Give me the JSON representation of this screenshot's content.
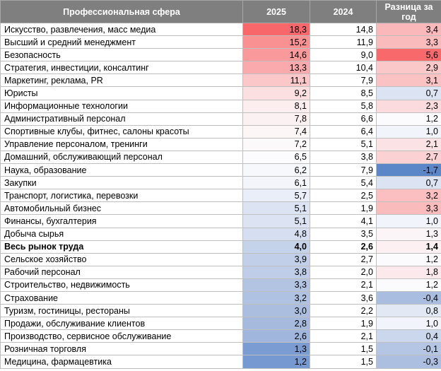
{
  "table": {
    "headers": [
      "Профессиональная сфера",
      "2025",
      "2024",
      "Разница за год"
    ],
    "rows": [
      {
        "name": "Искусство, развлечения, масс медиа",
        "v2025": "18,3",
        "v2024": "14,8",
        "diff": "3,4",
        "bg2025": "#f8686b",
        "bgDiff": "#fab8bb",
        "bold": false
      },
      {
        "name": "Высший и средний менеджмент",
        "v2025": "15,2",
        "v2024": "11,9",
        "diff": "3,3",
        "bg2025": "#f99193",
        "bgDiff": "#fabbbd",
        "bold": false
      },
      {
        "name": "Безопасность",
        "v2025": "14,6",
        "v2024": "9,0",
        "diff": "5,6",
        "bg2025": "#f9999b",
        "bgDiff": "#f8696b",
        "bold": false
      },
      {
        "name": "Стратегия, инвестиции, консалтинг",
        "v2025": "13,3",
        "v2024": "10,4",
        "diff": "2,9",
        "bg2025": "#faaaac",
        "bgDiff": "#fbc8ca",
        "bold": false
      },
      {
        "name": "Маркетинг, реклама, PR",
        "v2025": "11,1",
        "v2024": "7,9",
        "diff": "3,1",
        "bg2025": "#fbc7c9",
        "bgDiff": "#fbc2c4",
        "bold": false
      },
      {
        "name": "Юристы",
        "v2025": "9,2",
        "v2024": "8,5",
        "diff": "0,7",
        "bg2025": "#fce0e1",
        "bgDiff": "#dce4f3",
        "bold": false
      },
      {
        "name": "Информационные технологии",
        "v2025": "8,1",
        "v2024": "5,8",
        "diff": "2,3",
        "bg2025": "#fcedee",
        "bgDiff": "#fbdbdd",
        "bold": false
      },
      {
        "name": "Административный персонал",
        "v2025": "7,8",
        "v2024": "6,6",
        "diff": "1,2",
        "bg2025": "#fcf1f2",
        "bgDiff": "#fbfbfe",
        "bold": false
      },
      {
        "name": "Спортивные клубы, фитнес, салоны красоты",
        "v2025": "7,4",
        "v2024": "6,4",
        "diff": "1,0",
        "bg2025": "#fcf6f7",
        "bgDiff": "#f1f4fa",
        "bold": false
      },
      {
        "name": "Управление персоналом, тренинги",
        "v2025": "7,2",
        "v2024": "5,1",
        "diff": "2,1",
        "bg2025": "#fcf9fa",
        "bgDiff": "#fbe3e5",
        "bold": false
      },
      {
        "name": "Домашний, обслуживающий персонал",
        "v2025": "6,5",
        "v2024": "3,8",
        "diff": "2,7",
        "bg2025": "#fcfcff",
        "bgDiff": "#fbd1d3",
        "bold": false
      },
      {
        "name": "Наука, образование",
        "v2025": "6,2",
        "v2024": "7,9",
        "diff": "-1,7",
        "bg2025": "#f6f8fc",
        "bgDiff": "#5b87c9",
        "bold": false
      },
      {
        "name": "Закупки",
        "v2025": "6,1",
        "v2024": "5,4",
        "diff": "0,7",
        "bg2025": "#f3f5fb",
        "bgDiff": "#dce4f3",
        "bold": false
      },
      {
        "name": "Транспорт, логистика, перевозки",
        "v2025": "5,7",
        "v2024": "2,5",
        "diff": "3,2",
        "bg2025": "#e9eef8",
        "bgDiff": "#fbbfc1",
        "bold": false
      },
      {
        "name": "Автомобильный бизнес",
        "v2025": "5,1",
        "v2024": "1,9",
        "diff": "3,3",
        "bg2025": "#dce4f3",
        "bgDiff": "#fabbbd",
        "bold": false
      },
      {
        "name": "Финансы, бухгалтерия",
        "v2025": "5,1",
        "v2024": "4,1",
        "diff": "1,0",
        "bg2025": "#dce4f3",
        "bgDiff": "#f1f4fa",
        "bold": false
      },
      {
        "name": "Добыча сырья",
        "v2025": "4,8",
        "v2024": "3,5",
        "diff": "1,3",
        "bg2025": "#d5dff1",
        "bgDiff": "#fcf5f7",
        "bold": false
      },
      {
        "name": "Весь рынок труда",
        "v2025": "4,0",
        "v2024": "2,6",
        "diff": "1,4",
        "bg2025": "#c4d2ea",
        "bgDiff": "#fcf0f2",
        "bold": true
      },
      {
        "name": "Сельское хозяйство",
        "v2025": "3,9",
        "v2024": "2,7",
        "diff": "1,2",
        "bg2025": "#c1cfe9",
        "bgDiff": "#fbfbfe",
        "bold": false
      },
      {
        "name": "Рабочий персонал",
        "v2025": "3,8",
        "v2024": "2,0",
        "diff": "1,8",
        "bg2025": "#bfcde8",
        "bgDiff": "#fbe9eb",
        "bold": false
      },
      {
        "name": "Строительство, недвижимость",
        "v2025": "3,3",
        "v2024": "2,1",
        "diff": "1,2",
        "bg2025": "#b3c4e3",
        "bgDiff": "#fbfbfe",
        "bold": false
      },
      {
        "name": "Страхование",
        "v2025": "3,2",
        "v2024": "3,6",
        "diff": "-0,4",
        "bg2025": "#b0c2e2",
        "bgDiff": "#a8bde0",
        "bold": false
      },
      {
        "name": "Туризм, гостиницы, рестораны",
        "v2025": "3,0",
        "v2024": "2,2",
        "diff": "0,8",
        "bg2025": "#abbee0",
        "bgDiff": "#e2e9f5",
        "bold": false
      },
      {
        "name": "Продажи, обслуживание клиентов",
        "v2025": "2,8",
        "v2024": "1,9",
        "diff": "1,0",
        "bg2025": "#a6bade",
        "bgDiff": "#f1f4fa",
        "bold": false
      },
      {
        "name": "Производство, сервисное обслуживание",
        "v2025": "2,6",
        "v2024": "2,1",
        "diff": "0,4",
        "bg2025": "#a1b6dc",
        "bgDiff": "#cbd7ed",
        "bold": false
      },
      {
        "name": "Розничная торговля",
        "v2025": "1,3",
        "v2024": "1,5",
        "diff": "-0,1",
        "bg2025": "#7a9cd2",
        "bgDiff": "#b5c6e4",
        "bold": false
      },
      {
        "name": "Медицина, фармацевтика",
        "v2025": "1,2",
        "v2024": "1,5",
        "diff": "-0,3",
        "bg2025": "#7799d1",
        "bgDiff": "#acbfe1",
        "bold": false
      }
    ]
  }
}
